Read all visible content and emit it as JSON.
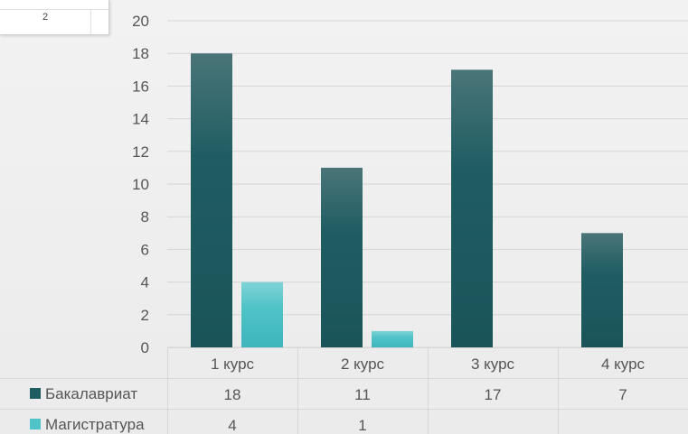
{
  "overlay": {
    "value": "2"
  },
  "colors": {
    "bachelor": "#1f5d63",
    "master": "#4fc3c8"
  },
  "chart_data": {
    "type": "bar",
    "categories": [
      "1 курс",
      "2 курс",
      "3 курс",
      "4 курс"
    ],
    "series": [
      {
        "name": "Бакалавриат",
        "values": [
          18,
          11,
          17,
          7
        ]
      },
      {
        "name": "Магистратура",
        "values": [
          4,
          1,
          null,
          null
        ]
      }
    ],
    "ylim": [
      0,
      20
    ],
    "yticks": [
      "0",
      "2",
      "4",
      "6",
      "8",
      "10",
      "12",
      "14",
      "16",
      "18",
      "20"
    ],
    "grid": true,
    "table": [
      [
        "18",
        "11",
        "17",
        "7"
      ],
      [
        "4",
        "1",
        "",
        ""
      ]
    ]
  }
}
